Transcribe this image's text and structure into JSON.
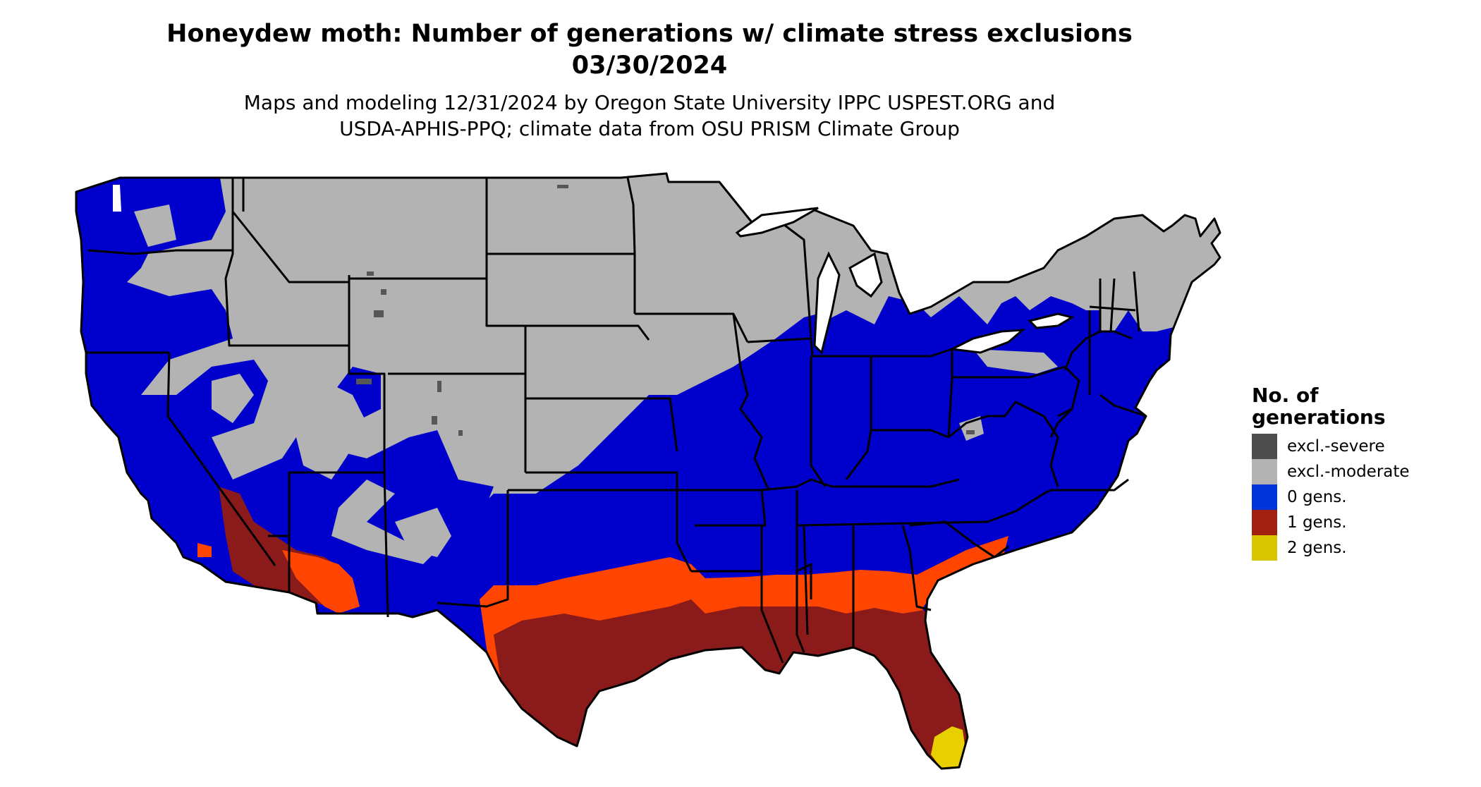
{
  "title": {
    "line1": "Honeydew moth: Number of generations w/ climate stress exclusions",
    "line2": "03/30/2024"
  },
  "subtitle": {
    "line1": "Maps and modeling 12/31/2024 by Oregon State University IPPC USPEST.ORG and",
    "line2": "USDA-APHIS-PPQ; climate data from OSU PRISM Climate Group"
  },
  "legend": {
    "title_line1": "No. of",
    "title_line2": "generations",
    "items": [
      {
        "label": "excl.-severe",
        "color": "#4d4d4d"
      },
      {
        "label": "excl.-moderate",
        "color": "#b3b3b3"
      },
      {
        "label": "0 gens.",
        "color": "#0033d9"
      },
      {
        "label": "1 gens.",
        "color": "#a12010"
      },
      {
        "label": "2 gens.",
        "color": "#d9c400"
      }
    ]
  },
  "map_colors": {
    "excl_severe": "#575757",
    "excl_moderate": "#b3b3b3",
    "zero_gens": "#0000cc",
    "one_gens_dark": "#8b1a1a",
    "one_gens_light": "#ff4500",
    "two_gens": "#e8d000",
    "state_borders": "#000000"
  }
}
